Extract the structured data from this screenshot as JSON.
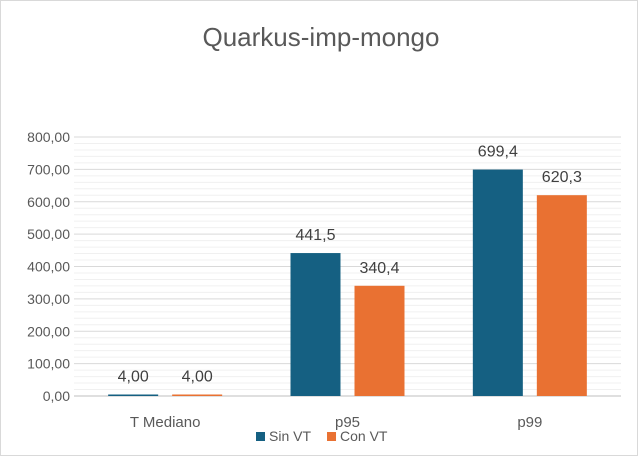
{
  "chart_data": {
    "type": "bar",
    "title": "Quarkus-imp-mongo",
    "categories": [
      "T Mediano",
      "p95",
      "p99"
    ],
    "series": [
      {
        "name": "Sin VT",
        "values": [
          4.0,
          441.5,
          699.4
        ],
        "labels": [
          "4,00",
          "441,5",
          "699,4"
        ],
        "color": "#156082"
      },
      {
        "name": "Con VT",
        "values": [
          4.0,
          340.4,
          620.3
        ],
        "labels": [
          "4,00",
          "340,4",
          "620,3"
        ],
        "color": "#E97132"
      }
    ],
    "ylim": [
      0,
      800
    ],
    "yticks": [
      0,
      100,
      200,
      300,
      400,
      500,
      600,
      700,
      800
    ],
    "ytick_labels": [
      "0,00",
      "100,00",
      "200,00",
      "300,00",
      "400,00",
      "500,00",
      "600,00",
      "700,00",
      "800,00"
    ],
    "grid": true,
    "legend": "bottom",
    "xlabel": "",
    "ylabel": ""
  }
}
